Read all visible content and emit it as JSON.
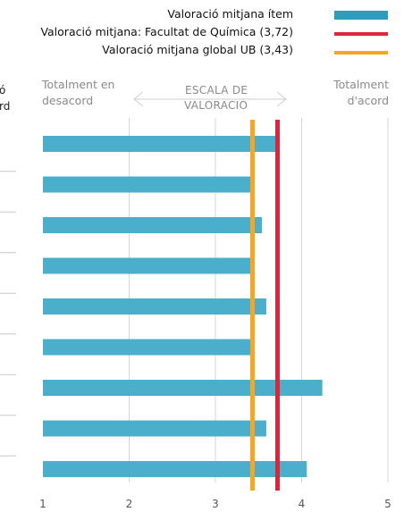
{
  "legend": {
    "item": "Valoració mitjana ítem",
    "faculty": "Valoració mitjana: Facultat de Química (3,72)",
    "global": "Valoració mitjana global UB (3,43)"
  },
  "scale": {
    "left_line1": "Totalment en",
    "left_line2": "desacord",
    "center_line1": "ESCALA DE",
    "center_line2": "VALORACIÓ",
    "right_line1": "Totalment",
    "right_line2": "d'acord",
    "cut_line1": "ó",
    "cut_line2": "rd"
  },
  "colors": {
    "bar": "#4BAFCB",
    "legend_bar": "#2E9DB9",
    "faculty_line": "#D8263B",
    "global_line": "#F5A623",
    "grid": "#d6d6d6",
    "tick_text": "#555555"
  },
  "chart_data": {
    "type": "bar",
    "orientation": "horizontal",
    "categories": [
      "",
      "",
      "",
      "",
      "",
      "",
      "",
      "",
      ""
    ],
    "values": [
      3.74,
      3.43,
      3.54,
      3.45,
      3.59,
      3.43,
      4.24,
      3.59,
      4.06
    ],
    "xlim": [
      1,
      5
    ],
    "xticks": [
      "1",
      "2",
      "3",
      "4",
      "5"
    ],
    "grid": true,
    "reference_lines": [
      {
        "name": "Valoració mitjana: Facultat de Química (3,72)",
        "value": 3.72
      },
      {
        "name": "Valoració mitjana global UB (3,43)",
        "value": 3.43
      }
    ],
    "series": [
      {
        "name": "Valoració mitjana ítem",
        "values": [
          3.74,
          3.43,
          3.54,
          3.45,
          3.59,
          3.43,
          4.24,
          3.59,
          4.06
        ]
      }
    ]
  }
}
